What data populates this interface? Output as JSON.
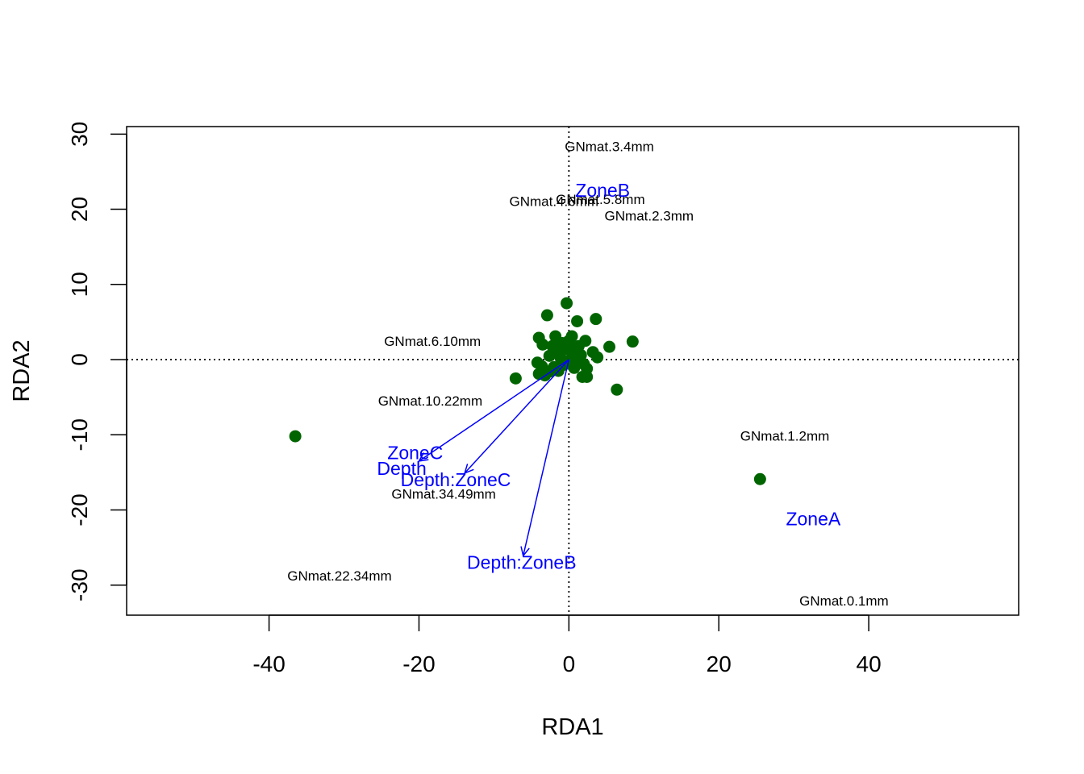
{
  "chart_data": {
    "type": "scatter",
    "title": "",
    "xlabel": "RDA1",
    "ylabel": "RDA2",
    "xlim": [
      -59,
      60
    ],
    "ylim": [
      -34,
      31
    ],
    "xticks": [
      -40,
      -20,
      0,
      20,
      40
    ],
    "yticks": [
      -30,
      -20,
      -10,
      0,
      10,
      20,
      30
    ],
    "reference_lines": {
      "x": 0,
      "y": 0,
      "style": "dotted"
    },
    "colors": {
      "sites": "#006400",
      "constraints": "#0000ff",
      "species": "#000000"
    },
    "sites": [
      {
        "x": -36.5,
        "y": -10.2
      },
      {
        "x": 25.5,
        "y": -15.9
      },
      {
        "x": -7.1,
        "y": -2.5
      },
      {
        "x": -2.9,
        "y": 5.9
      },
      {
        "x": -0.3,
        "y": 7.5
      },
      {
        "x": 1.1,
        "y": 5.1
      },
      {
        "x": 3.6,
        "y": 5.4
      },
      {
        "x": 8.5,
        "y": 2.4
      },
      {
        "x": 5.4,
        "y": 1.7
      },
      {
        "x": 6.4,
        "y": -4.0
      },
      {
        "x": -4.0,
        "y": 2.9
      },
      {
        "x": -1.8,
        "y": 3.1
      },
      {
        "x": 0.4,
        "y": 3.1
      },
      {
        "x": 2.2,
        "y": 2.5
      },
      {
        "x": -3.5,
        "y": 2.0
      },
      {
        "x": -2.2,
        "y": 1.8
      },
      {
        "x": -0.9,
        "y": 2.2
      },
      {
        "x": 0.0,
        "y": 2.5
      },
      {
        "x": 1.3,
        "y": 1.8
      },
      {
        "x": 3.2,
        "y": 1.0
      },
      {
        "x": 3.8,
        "y": 0.3
      },
      {
        "x": -1.5,
        "y": 1.2
      },
      {
        "x": -0.5,
        "y": 1.4
      },
      {
        "x": 0.6,
        "y": 1.0
      },
      {
        "x": 1.6,
        "y": 0.6
      },
      {
        "x": -2.6,
        "y": 0.5
      },
      {
        "x": -1.1,
        "y": 0.2
      },
      {
        "x": 0.2,
        "y": 0.0
      },
      {
        "x": 1.0,
        "y": -0.3
      },
      {
        "x": 2.0,
        "y": -0.6
      },
      {
        "x": -4.2,
        "y": -0.4
      },
      {
        "x": -3.6,
        "y": -0.9
      },
      {
        "x": -2.0,
        "y": -1.0
      },
      {
        "x": -0.7,
        "y": -0.7
      },
      {
        "x": 0.7,
        "y": -1.1
      },
      {
        "x": 2.4,
        "y": -1.2
      },
      {
        "x": -4.0,
        "y": -1.9
      },
      {
        "x": -2.6,
        "y": -1.6
      },
      {
        "x": -1.4,
        "y": -1.5
      },
      {
        "x": 1.8,
        "y": -2.3
      },
      {
        "x": 2.4,
        "y": -2.3
      },
      {
        "x": -3.2,
        "y": -2.1
      },
      {
        "x": 0.3,
        "y": 1.7
      },
      {
        "x": -0.2,
        "y": -0.4
      }
    ],
    "species": [
      {
        "label": "GNmat.3.4mm",
        "x": 5.4,
        "y": 28.3
      },
      {
        "label": "GNmat.5.8mm",
        "x": 4.2,
        "y": 21.3
      },
      {
        "label": "GNmat.4.6mm",
        "x": -2.0,
        "y": 21.0
      },
      {
        "label": "GNmat.2.3mm",
        "x": 10.7,
        "y": 19.1
      },
      {
        "label": "GNmat.6.10mm",
        "x": -18.2,
        "y": 2.4
      },
      {
        "label": "GNmat.10.22mm",
        "x": -18.5,
        "y": -5.5
      },
      {
        "label": "GNmat.1.2mm",
        "x": 28.8,
        "y": -10.2
      },
      {
        "label": "GNmat.34.49mm",
        "x": -16.7,
        "y": -17.9
      },
      {
        "label": "GNmat.22.34mm",
        "x": -30.6,
        "y": -28.8
      },
      {
        "label": "GNmat.0.1mm",
        "x": 36.7,
        "y": -32.1
      }
    ],
    "constraints": [
      {
        "label": "ZoneB",
        "x": 4.5,
        "y": 22.5,
        "arrow": false
      },
      {
        "label": "ZoneC",
        "x": -20.5,
        "y": -12.4,
        "arrow": true,
        "end": [
          -20.0,
          -13.5
        ]
      },
      {
        "label": "Depth",
        "x": -22.3,
        "y": -14.5,
        "arrow": false
      },
      {
        "label": "Depth:ZoneC",
        "x": -15.1,
        "y": -16.0,
        "arrow": true,
        "end": [
          -13.9,
          -15.1
        ]
      },
      {
        "label": "Depth:ZoneB",
        "x": -6.3,
        "y": -27.0,
        "arrow": true,
        "end": [
          -6.1,
          -26.1
        ]
      },
      {
        "label": "ZoneA",
        "x": 32.6,
        "y": -21.2,
        "arrow": false
      }
    ]
  }
}
